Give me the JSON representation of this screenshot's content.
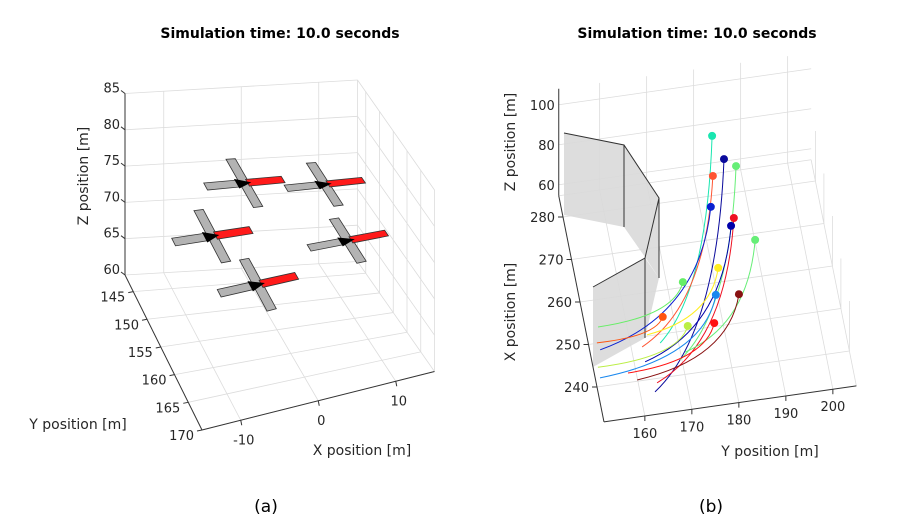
{
  "chart_data": [
    {
      "type": "scatter",
      "subplot_label": "(a)",
      "title": "Simulation time: 10.0 seconds",
      "xlabel": "X position [m]",
      "ylabel": "Y position [m]",
      "zlabel": "Z position [m]",
      "xlim": [
        -15,
        15
      ],
      "ylim": [
        142,
        170
      ],
      "zlim": [
        60,
        85
      ],
      "xticks": [
        "-10",
        "0",
        "10"
      ],
      "yticks": [
        "145",
        "150",
        "155",
        "160",
        "165",
        "170"
      ],
      "zticks": [
        "60",
        "65",
        "70",
        "75",
        "80",
        "85"
      ],
      "grid": true,
      "view": "3d",
      "drone_colors": {
        "body": "#b3b3b3",
        "front_arm": "#ff1a1a",
        "center": "#000000"
      },
      "drones": [
        {
          "x": -1.3,
          "y": 146.8,
          "z": 75
        },
        {
          "x": 8.4,
          "y": 148.7,
          "z": 75
        },
        {
          "x": -8.7,
          "y": 156.0,
          "z": 75
        },
        {
          "x": 6.9,
          "y": 161.3,
          "z": 75
        },
        {
          "x": -6.4,
          "y": 166.1,
          "z": 75
        }
      ]
    },
    {
      "type": "line",
      "subplot_label": "(b)",
      "title": "Simulation time: 10.0 seconds",
      "xlabel": "Y position [m]",
      "ylabel": "X position [m]",
      "zlabel": "Z position [m]",
      "ylim_Y": [
        151.3,
        205
      ],
      "xlim_X": [
        231.8,
        285
      ],
      "zlim": [
        54.5,
        108
      ],
      "Yticks": [
        "160",
        "170",
        "180",
        "190",
        "200"
      ],
      "Xticks": [
        "240",
        "250",
        "260",
        "270",
        "280"
      ],
      "zticks": [
        "60",
        "80",
        "100"
      ],
      "grid": true,
      "view": "3d",
      "obstacle_color": "#d9d9d9",
      "trajectories": [
        {
          "color": "#19e6b0",
          "start": [
            166.2,
            248.0
          ],
          "end": [
            185.5,
            293.7
          ]
        },
        {
          "color": "#0a0a9c",
          "start": [
            163.1,
            237.0
          ],
          "end": [
            187.0,
            288.0
          ]
        },
        {
          "color": "#66ee77",
          "start": [
            169.6,
            243.5
          ],
          "end": [
            189.2,
            286.0
          ]
        },
        {
          "color": "#ff5533",
          "start": [
            162.3,
            247.7
          ],
          "end": [
            184.0,
            284.5
          ]
        },
        {
          "color": "#0a20d0",
          "start": [
            153.5,
            248.4
          ],
          "end": [
            182.3,
            277.5
          ]
        },
        {
          "color": "#ee1122",
          "start": [
            163.9,
            239.0
          ],
          "end": [
            186.6,
            274.2
          ]
        },
        {
          "color": "#0000aa",
          "start": [
            162.3,
            244.2
          ],
          "end": [
            185.7,
            272.5
          ]
        },
        {
          "color": "#66ee77",
          "start": [
            171.0,
            245.1
          ],
          "end": [
            190.1,
            268.5
          ]
        },
        {
          "color": "#ffee22",
          "start": [
            163.8,
            250.3
          ],
          "end": [
            181.3,
            263.3
          ]
        },
        {
          "color": "#66ee66",
          "start": [
            154.0,
            253.7
          ],
          "end": [
            173.4,
            261.2
          ]
        },
        {
          "color": "#1a88ee",
          "start": [
            152.3,
            242.0
          ],
          "end": [
            179.7,
            257.2
          ]
        },
        {
          "color": "#881111",
          "start": [
            159.9,
            240.3
          ],
          "end": [
            184.5,
            256.6
          ]
        },
        {
          "color": "#ff5511",
          "start": [
            153.1,
            250.1
          ],
          "end": [
            167.8,
            253.9
          ]
        },
        {
          "color": "#bbee44",
          "start": [
            152.3,
            244.5
          ],
          "end": [
            172.6,
            251.0
          ]
        },
        {
          "color": "#ff1111",
          "start": [
            158.3,
            242.2
          ],
          "end": [
            178.2,
            250.8
          ]
        }
      ]
    }
  ]
}
